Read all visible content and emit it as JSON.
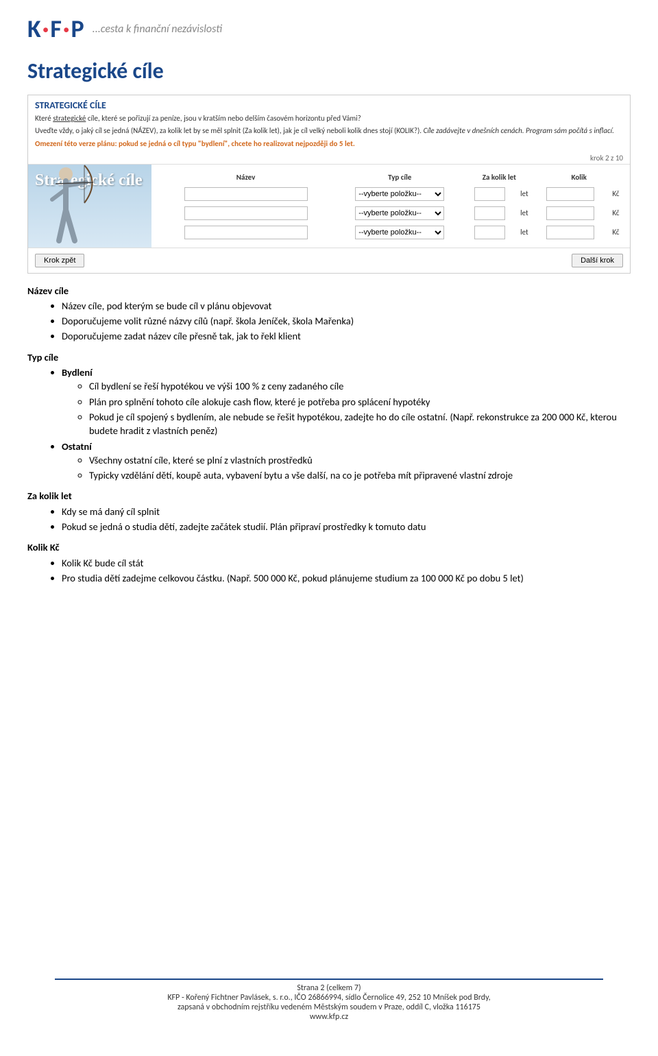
{
  "logo": {
    "letters": [
      "K",
      "·",
      "F",
      "·",
      "P"
    ],
    "colors": [
      "#1a4789",
      "#e63946",
      "#1a4789",
      "#e63946",
      "#1a4789"
    ],
    "tagline": "...cesta k finanční nezávislosti"
  },
  "main_title": "Strategické cíle",
  "screenshot": {
    "title": "STRATEGICKÉ CÍLE",
    "line1_a": "Které ",
    "line1_underline": "strategické",
    "line1_b": " cíle, které se pořizují za peníze, jsou v kratším nebo delším časovém horizontu před Vámi?",
    "line2_a": "Uveďte vždy, o jaký cíl se jedná (NÁZEV), za kolik let by se měl splnit (Za kolik let), jak je cíl velký neboli kolik dnes stojí (KOLIK?). ",
    "line2_italic": "Cíle zadávejte v dnešních cenách. Program sám počítá s inflací.",
    "warning": "Omezení této verze plánu: pokud se jedná o cíl typu \"bydlení\", chcete ho realizovat nejpozději do 5 let.",
    "step": "krok 2 z 10",
    "archer_title": "Strategické cíle",
    "table": {
      "headers": [
        "Název",
        "Typ cíle",
        "Za kolik let",
        "Kolik"
      ],
      "select_placeholder": "--vyberte položku--",
      "unit_let": "let",
      "unit_kc": "Kč",
      "rows": 3
    },
    "btn_back": "Krok zpět",
    "btn_next": "Další krok"
  },
  "content": {
    "h1": "Název cíle",
    "h1_items": [
      "Název cíle, pod kterým se bude cíl v plánu objevovat",
      "Doporučujeme volit různé názvy cílů (např. škola Jeníček, škola Mařenka)",
      "Doporučujeme zadat název cíle přesně tak, jak to řekl klient"
    ],
    "h2": "Typ cíle",
    "h2_sub1": "Bydlení",
    "h2_sub1_items": [
      "Cíl bydlení se řeší hypotékou ve výši 100 % z ceny zadaného cíle",
      "Plán pro splnění tohoto cíle alokuje cash flow, které je potřeba pro splácení hypotéky",
      "Pokud je cíl spojený s bydlením, ale nebude se řešit hypotékou, zadejte ho do cíle ostatní. (Např. rekonstrukce za 200 000 Kč, kterou budete hradit z vlastních peněz)"
    ],
    "h2_sub2": "Ostatní",
    "h2_sub2_items": [
      "Všechny ostatní cíle, které se plní z vlastních prostředků",
      "Typicky vzdělání dětí, koupě auta, vybavení bytu a vše další, na co je potřeba mít připravené vlastní zdroje"
    ],
    "h3": "Za kolik let",
    "h3_items": [
      "Kdy se má daný cíl splnit",
      "Pokud se jedná o studia dětí, zadejte začátek studií. Plán připraví prostředky k tomuto datu"
    ],
    "h4": "Kolik Kč",
    "h4_items": [
      "Kolik Kč bude cíl stát",
      "Pro studia dětí zadejme celkovou částku. (Např. 500 000 Kč, pokud plánujeme studium za 100 000 Kč po dobu 5 let)"
    ]
  },
  "footer": {
    "page": "Strana 2 (celkem 7)",
    "company": "KFP - Kořený Fichtner Pavlásek, s. r.o., IČO 26866994, sídlo Černolice 49, 252 10  Mníšek pod Brdy,",
    "registry": "zapsaná v obchodním rejstříku vedeném Městským soudem v Praze, oddíl C, vložka 116175",
    "url": "www.kfp.cz"
  }
}
